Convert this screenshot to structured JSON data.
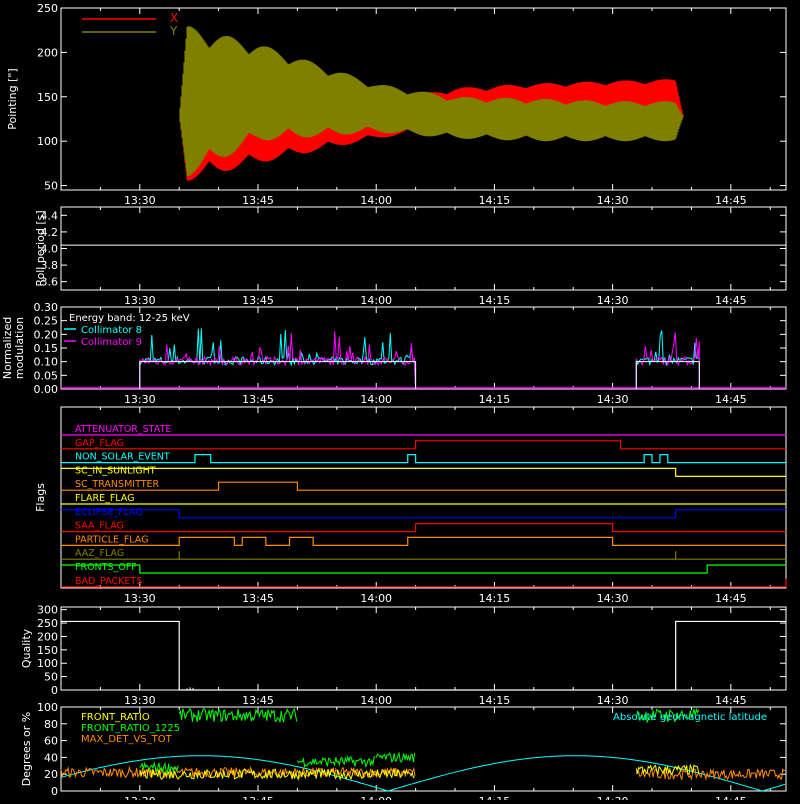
{
  "colors": {
    "background": "#000000",
    "axis": "#ffffff",
    "red": "#ff0000",
    "olive": "#808000",
    "white": "#ffffff",
    "cyan": "#00ffff",
    "magenta": "#ff00ff",
    "yellow": "#ffff00",
    "orange": "#ff8c00",
    "green": "#00ff00",
    "blue": "#0000ff",
    "darkred": "#c00000"
  },
  "time_axis": {
    "ticks": [
      "13:30",
      "13:45",
      "14:00",
      "14:15",
      "14:30",
      "14:45"
    ],
    "minor_ticks_per_major": 3
  },
  "chart_data": [
    {
      "type": "line",
      "ylabel": "Pointing [\"]",
      "ylim": [
        45,
        250
      ],
      "yticks": [
        "50",
        "100",
        "150",
        "200",
        "250"
      ],
      "legend_position": "top-left",
      "series": [
        {
          "name": "X",
          "color": "#ff0000",
          "envelope": [
            {
              "t": "13:20",
              "min": 128,
              "max": 128
            },
            {
              "t": "13:35",
              "min": 128,
              "max": 128
            },
            {
              "t": "13:36",
              "min": 55,
              "max": 200
            },
            {
              "t": "13:45",
              "min": 75,
              "max": 170
            },
            {
              "t": "14:00",
              "min": 103,
              "max": 145
            },
            {
              "t": "14:10",
              "min": 115,
              "max": 160
            },
            {
              "t": "14:20",
              "min": 125,
              "max": 165
            },
            {
              "t": "14:30",
              "min": 130,
              "max": 168
            },
            {
              "t": "14:38",
              "min": 130,
              "max": 170
            },
            {
              "t": "14:39",
              "min": 128,
              "max": 128
            },
            {
              "t": "14:52",
              "min": 128,
              "max": 128
            }
          ]
        },
        {
          "name": "Y",
          "color": "#808000",
          "envelope": [
            {
              "t": "13:20",
              "min": 128,
              "max": 128
            },
            {
              "t": "13:35",
              "min": 128,
              "max": 128
            },
            {
              "t": "13:36",
              "min": 60,
              "max": 230
            },
            {
              "t": "13:45",
              "min": 100,
              "max": 210
            },
            {
              "t": "14:00",
              "min": 110,
              "max": 165
            },
            {
              "t": "14:10",
              "min": 103,
              "max": 150
            },
            {
              "t": "14:20",
              "min": 100,
              "max": 148
            },
            {
              "t": "14:30",
              "min": 100,
              "max": 145
            },
            {
              "t": "14:38",
              "min": 100,
              "max": 145
            },
            {
              "t": "14:39",
              "min": 128,
              "max": 128
            },
            {
              "t": "14:52",
              "min": 128,
              "max": 128
            }
          ]
        }
      ]
    },
    {
      "type": "line",
      "ylabel": "Roll period [s]",
      "ylim": [
        3.5,
        4.5
      ],
      "yticks": [
        "3.6",
        "3.8",
        "4.0",
        "4.2",
        "4.4"
      ],
      "series": [
        {
          "name": "",
          "color": "#ffffff",
          "points": [
            [
              "13:20",
              4.04
            ],
            [
              "14:52",
              4.04
            ]
          ]
        }
      ]
    },
    {
      "type": "line",
      "ylabel": "Normalized modulation",
      "ylim": [
        0,
        0.3
      ],
      "yticks": [
        "0.00",
        "0.05",
        "0.10",
        "0.15",
        "0.20",
        "0.25",
        "0.30"
      ],
      "annotation": "Energy band: 12-25 keV",
      "series": [
        {
          "name": "Collimator 8",
          "color": "#00ffff",
          "segments": [
            [
              "13:30",
              "14:05",
              0.1
            ],
            [
              "14:33",
              "14:41",
              0.1
            ]
          ]
        },
        {
          "name": "Collimator 9",
          "color": "#ff00ff",
          "segments": [
            [
              "13:30",
              "14:05",
              0.1
            ],
            [
              "14:33",
              "14:41",
              0.1
            ]
          ]
        }
      ]
    },
    {
      "type": "line",
      "ylabel": "Flags",
      "series": [
        {
          "name": "ATTENUATOR_STATE",
          "color": "#ff00ff",
          "transitions": [
            [
              "13:20",
              0
            ]
          ]
        },
        {
          "name": "GAP_FLAG",
          "color": "#ff0000",
          "transitions": [
            [
              "13:20",
              0
            ],
            [
              "14:05",
              1
            ],
            [
              "14:31",
              0
            ]
          ]
        },
        {
          "name": "NON_SOLAR_EVENT",
          "color": "#00ffff",
          "transitions": [
            [
              "13:20",
              0
            ],
            [
              "13:37",
              1
            ],
            [
              "13:39",
              0
            ],
            [
              "14:04",
              1
            ],
            [
              "14:05",
              0
            ],
            [
              "14:34",
              1
            ],
            [
              "14:35",
              0
            ],
            [
              "14:36",
              1
            ],
            [
              "14:37",
              0
            ]
          ]
        },
        {
          "name": "SC_IN_SUNLIGHT",
          "color": "#ffff00",
          "transitions": [
            [
              "13:20",
              1
            ],
            [
              "14:38",
              0
            ]
          ]
        },
        {
          "name": "SC_TRANSMITTER",
          "color": "#ff8c00",
          "transitions": [
            [
              "13:20",
              0
            ],
            [
              "13:40",
              1
            ],
            [
              "13:44",
              1
            ],
            [
              "13:50",
              0
            ]
          ]
        },
        {
          "name": "FLARE_FLAG",
          "color": "#ffff00",
          "transitions": [
            [
              "13:20",
              0
            ]
          ]
        },
        {
          "name": "ECLIPSE_FLAG",
          "color": "#0000ff",
          "transitions": [
            [
              "13:20",
              1
            ],
            [
              "13:35",
              0
            ],
            [
              "14:38",
              1
            ]
          ]
        },
        {
          "name": "SAA_FLAG",
          "color": "#ff0000",
          "transitions": [
            [
              "13:20",
              0
            ],
            [
              "14:05",
              1
            ],
            [
              "14:30",
              0
            ]
          ]
        },
        {
          "name": "PARTICLE_FLAG",
          "color": "#ff8c00",
          "transitions": [
            [
              "13:20",
              0
            ],
            [
              "13:35",
              1
            ],
            [
              "13:42",
              0
            ],
            [
              "13:43",
              1
            ],
            [
              "13:46",
              0
            ],
            [
              "13:49",
              1
            ],
            [
              "13:52",
              0
            ],
            [
              "14:04",
              1
            ],
            [
              "14:30",
              0
            ]
          ]
        },
        {
          "name": "AAZ_FLAG",
          "color": "#808000",
          "transitions": [
            [
              "13:20",
              0
            ],
            [
              "13:35",
              1
            ],
            [
              "13:35",
              0
            ],
            [
              "14:38",
              1
            ],
            [
              "14:38",
              0
            ]
          ]
        },
        {
          "name": "FRONTS_OFF",
          "color": "#00ff00",
          "transitions": [
            [
              "13:20",
              1
            ],
            [
              "13:30",
              0
            ],
            [
              "14:42",
              1
            ]
          ]
        },
        {
          "name": "BAD_PACKETS",
          "color": "#ff0000",
          "transitions": [
            [
              "13:20",
              0
            ],
            [
              "14:52",
              1
            ]
          ]
        }
      ]
    },
    {
      "type": "line",
      "ylabel": "Quality",
      "ylim": [
        0,
        310
      ],
      "yticks": [
        "0",
        "50",
        "100",
        "150",
        "200",
        "250",
        "300"
      ],
      "series": [
        {
          "name": "",
          "color": "#ffffff",
          "points": [
            [
              "13:20",
              256
            ],
            [
              "13:35",
              256
            ],
            [
              "13:35",
              0
            ],
            [
              "14:38",
              0
            ],
            [
              "14:38",
              256
            ],
            [
              "14:52",
              256
            ]
          ]
        }
      ]
    },
    {
      "type": "line",
      "ylabel": "Degrees or %",
      "ylim": [
        0,
        100
      ],
      "yticks": [
        "0",
        "20",
        "40",
        "60",
        "80",
        "100"
      ],
      "series": [
        {
          "name": "FRONT_RATIO",
          "color": "#ffff00",
          "segments": [
            [
              "13:30",
              "14:05",
              20
            ],
            [
              "14:33",
              "14:41",
              25
            ]
          ]
        },
        {
          "name": "FRONT_RATIO_1225",
          "color": "#00ff00",
          "segments": [
            [
              "13:30",
              "13:35",
              28
            ],
            [
              "13:35",
              "13:50",
              90
            ],
            [
              "13:50",
              "14:00",
              35
            ],
            [
              "14:00",
              "14:05",
              40
            ],
            [
              "14:33",
              "14:41",
              90
            ]
          ]
        },
        {
          "name": "MAX_DET_VS_TOT",
          "color": "#ff8c00",
          "segments": [
            [
              "13:20",
              "14:05",
              22
            ],
            [
              "14:33",
              "14:52",
              20
            ]
          ]
        },
        {
          "name": "Absolute geomagnetic latitude",
          "color": "#00ffff",
          "curve": true
        }
      ]
    }
  ]
}
